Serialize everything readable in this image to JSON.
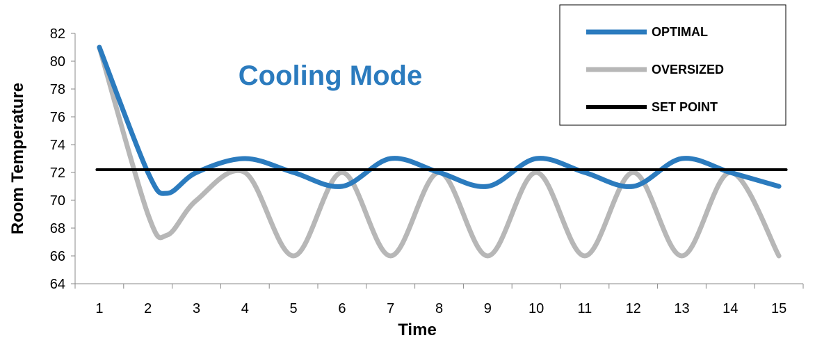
{
  "chart_data": {
    "type": "line",
    "title": "Cooling Mode",
    "xlabel": "Time",
    "ylabel": "Room Temperature",
    "x": [
      1,
      2,
      3,
      4,
      5,
      6,
      7,
      8,
      9,
      10,
      11,
      12,
      13,
      14,
      15
    ],
    "x_tick_labels": [
      "1",
      "2",
      "3",
      "4",
      "5",
      "6",
      "7",
      "8",
      "9",
      "10",
      "11",
      "12",
      "13",
      "14",
      "15"
    ],
    "y_tick_labels": [
      "64",
      "66",
      "68",
      "70",
      "72",
      "74",
      "76",
      "78",
      "80",
      "82"
    ],
    "ylim": [
      64,
      82
    ],
    "grid": false,
    "legend_position": "top-right",
    "series": [
      {
        "name": "OPTIMAL",
        "color": "#2B7BBE",
        "values": [
          {
            "x": 1,
            "y": 81
          },
          {
            "x": 2,
            "y": 72
          },
          {
            "x": 2.4,
            "y": 70.5
          },
          {
            "x": 3,
            "y": 72
          },
          {
            "x": 4,
            "y": 73
          },
          {
            "x": 5,
            "y": 72
          },
          {
            "x": 6,
            "y": 71
          },
          {
            "x": 7,
            "y": 73
          },
          {
            "x": 8,
            "y": 72
          },
          {
            "x": 9,
            "y": 71
          },
          {
            "x": 10,
            "y": 73
          },
          {
            "x": 11,
            "y": 72
          },
          {
            "x": 12,
            "y": 71
          },
          {
            "x": 13,
            "y": 73
          },
          {
            "x": 14,
            "y": 72
          },
          {
            "x": 15,
            "y": 71
          }
        ]
      },
      {
        "name": "OVERSIZED",
        "color": "#B7B7B7",
        "values": [
          {
            "x": 1,
            "y": 81
          },
          {
            "x": 2,
            "y": 69
          },
          {
            "x": 2.4,
            "y": 67.5
          },
          {
            "x": 3,
            "y": 70
          },
          {
            "x": 4,
            "y": 72
          },
          {
            "x": 5,
            "y": 66
          },
          {
            "x": 6,
            "y": 72
          },
          {
            "x": 7,
            "y": 66
          },
          {
            "x": 8,
            "y": 72
          },
          {
            "x": 9,
            "y": 66
          },
          {
            "x": 10,
            "y": 72
          },
          {
            "x": 11,
            "y": 66
          },
          {
            "x": 12,
            "y": 72
          },
          {
            "x": 13,
            "y": 66
          },
          {
            "x": 14,
            "y": 72
          },
          {
            "x": 15,
            "y": 66
          }
        ]
      },
      {
        "name": "SET POINT",
        "color": "#000000",
        "values": [
          {
            "x": 0.95,
            "y": 72.2
          },
          {
            "x": 15.15,
            "y": 72.2
          }
        ]
      }
    ]
  }
}
